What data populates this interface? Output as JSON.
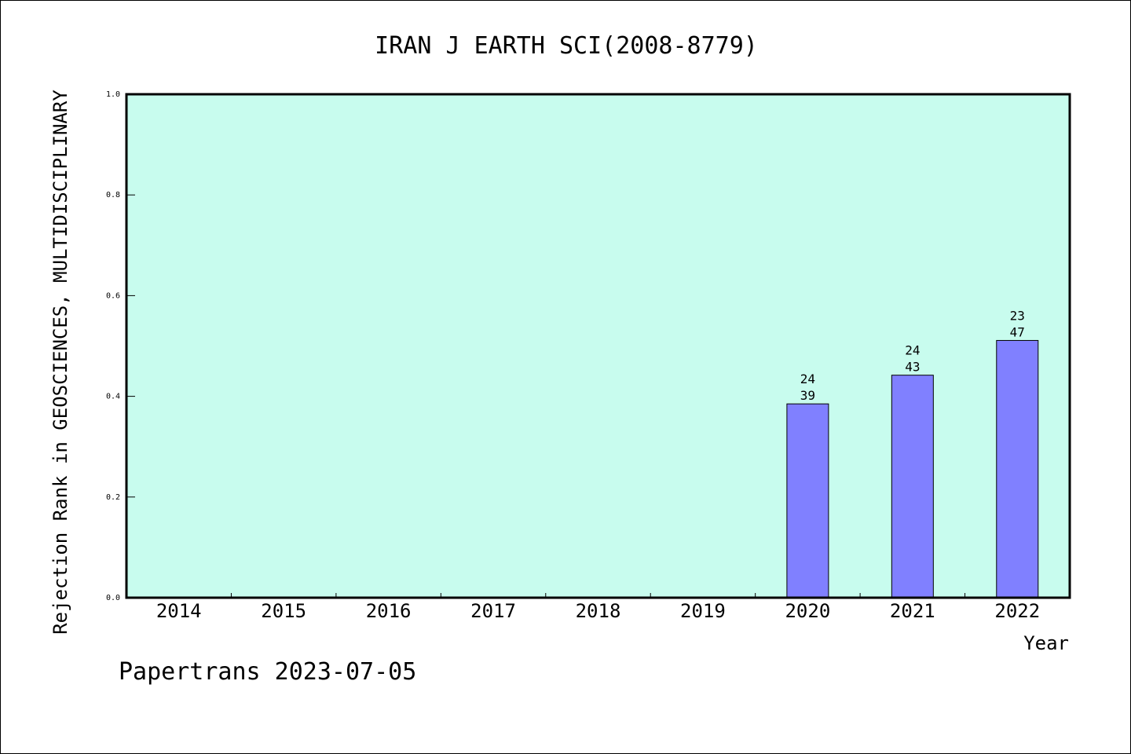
{
  "chart_data": {
    "type": "bar",
    "title": "IRAN J EARTH SCI(2008-8779)",
    "xlabel": "Year",
    "ylabel": "Rejection Rank in GEOSCIENCES, MULTIDISCIPLINARY",
    "ylim": [
      0,
      1
    ],
    "yticks": [
      "0.0",
      "0.2",
      "0.4",
      "0.6",
      "0.8",
      "1.0"
    ],
    "categories": [
      "2014",
      "2015",
      "2016",
      "2017",
      "2018",
      "2019",
      "2020",
      "2021",
      "2022"
    ],
    "values": [
      null,
      null,
      null,
      null,
      null,
      null,
      0.385,
      0.442,
      0.511
    ],
    "labels": [
      null,
      null,
      null,
      null,
      null,
      null,
      [
        "24",
        "39"
      ],
      [
        "24",
        "43"
      ],
      [
        "23",
        "47"
      ]
    ],
    "grid": false,
    "colors": {
      "plot_bg": "#c8fcee",
      "bar": "#8080ff"
    }
  },
  "footer": "Papertrans 2023-07-05"
}
